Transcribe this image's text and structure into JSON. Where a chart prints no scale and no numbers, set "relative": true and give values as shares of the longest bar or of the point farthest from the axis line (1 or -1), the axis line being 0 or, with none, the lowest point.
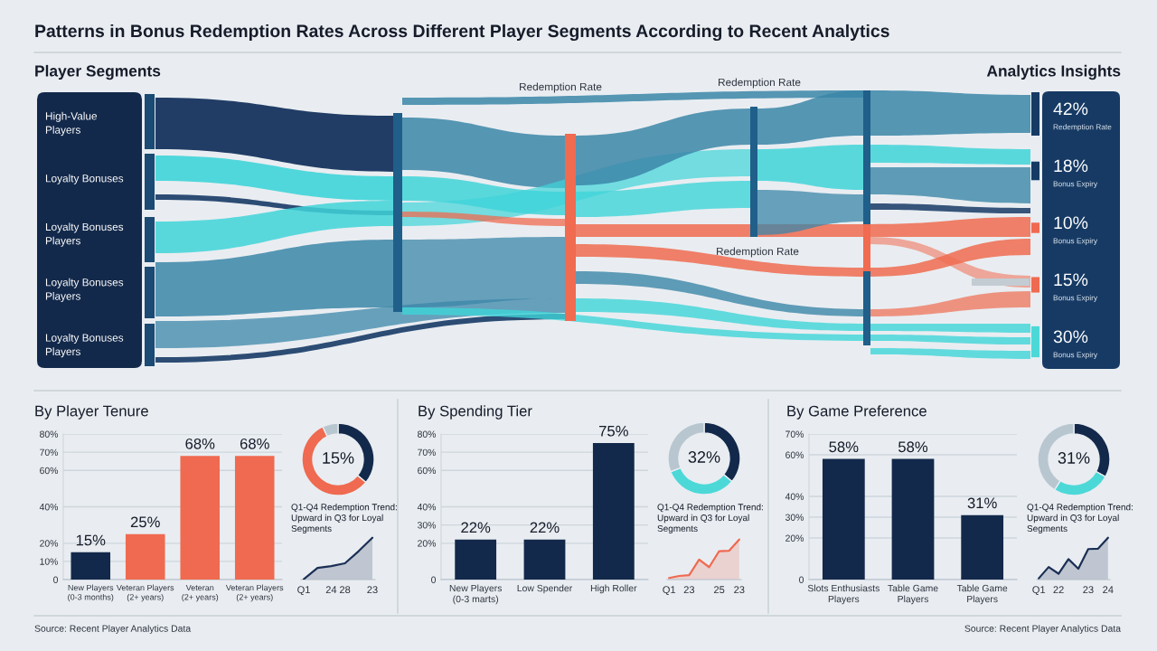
{
  "chart_data": [
    {
      "type": "other",
      "title": "Patterns in Bonus Redemption Rates Across Different Player Segments According to Recent Analytics",
      "subtitle": "Player Segments",
      "categories": [
        "High-Value\nPlayers",
        "Loyalty Bonuses",
        "Loyalty Bonuses\nPlayers",
        "Loyalty Bonuses\nPlayers",
        "Loyalty Bonuses\nPlayers"
      ],
      "annotations": [
        "Redemption Rate",
        "Redemption Rate",
        "Redemption Rate"
      ]
    },
    {
      "type": "other",
      "title": "Analytics Insights",
      "categories": [
        "Redemption Rate",
        "Bonus Expiry",
        "Bonus Expiry",
        "Bonus Expiry",
        "Bonus Expiry"
      ],
      "values": [
        42,
        18,
        10,
        15,
        30
      ],
      "value_labels": [
        "42%",
        "18%",
        "10%",
        "15%",
        "30%"
      ],
      "colors": [
        "#163a64",
        "#163a64",
        "#ef6a50",
        "#ef6a50",
        "#4dd8d8"
      ]
    },
    {
      "type": "bar",
      "title": "By Player Tenure",
      "categories": [
        "New Players\n(0-3 months)",
        "Veteran Players\n(2+ years)",
        "Veteran\n(2+ years)",
        "Veteran Players\n(2+ years)"
      ],
      "values": [
        15,
        25,
        68,
        68
      ],
      "value_labels": [
        "15%",
        "25%",
        "68%",
        "68%"
      ],
      "colors": [
        "#13294b",
        "#ef6a50",
        "#ef6a50",
        "#ef6a50"
      ],
      "ylim": [
        0,
        80
      ],
      "yticks": [
        0,
        {
          "value": 10,
          "label": "10%"
        },
        {
          "value": 20,
          "label": "20%"
        },
        {
          "value": 40,
          "label": "40%"
        },
        {
          "value": 60,
          "label": "60%"
        },
        {
          "value": 70,
          "label": "70%"
        },
        {
          "value": 80,
          "label": "80%"
        }
      ],
      "grid": "y",
      "annotations": [
        "Source: Recent Player Analytics Data"
      ]
    },
    {
      "type": "donut",
      "categories": [
        null,
        null,
        null
      ],
      "values": [
        36,
        57,
        7
      ],
      "colors": [
        "#13294b",
        "#ef6a50",
        "#b8c6d0"
      ],
      "annotations": [
        "15%"
      ]
    },
    {
      "type": "area",
      "title": "Q1-Q4 Redemption Trend:\nUpward in Q3 for Loyal\nSegments",
      "relative": true,
      "categories": [
        "Q1",
        null,
        "24",
        "28",
        null,
        "23"
      ],
      "series": [
        {
          "color": "#1b2f55",
          "values": [
            0.01,
            0.28,
            0.32,
            0.39,
            0.68,
            1
          ]
        }
      ]
    },
    {
      "type": "bar",
      "title": "By Spending Tier",
      "categories": [
        "New Players\n(0-3 marts)",
        "Low Spender",
        "High Roller"
      ],
      "values": [
        22,
        22,
        75
      ],
      "value_labels": [
        "22%",
        "22%",
        "75%"
      ],
      "colors": [
        "#13294b",
        "#13294b",
        "#13294b"
      ],
      "ylim": [
        0,
        80
      ],
      "yticks": [
        0,
        {
          "value": 20,
          "label": "20%"
        },
        {
          "value": 30,
          "label": "30%"
        },
        {
          "value": 40,
          "label": "40%"
        },
        {
          "value": 60,
          "label": "60%"
        },
        {
          "value": 70,
          "label": "70%"
        },
        {
          "value": 80,
          "label": "80%"
        }
      ],
      "grid": "y"
    },
    {
      "type": "donut",
      "categories": [
        null,
        null,
        null
      ],
      "values": [
        36,
        33,
        31
      ],
      "colors": [
        "#13294b",
        "#4dd8d8",
        "#b8c6d0"
      ],
      "annotations": [
        "32%"
      ]
    },
    {
      "type": "area",
      "title": "Q1-Q4 Redemption Trend:\nUpward in Q3 for Loyal\nSegments",
      "relative": true,
      "categories": [
        "Q1",
        null,
        "23",
        null,
        null,
        "25",
        null,
        "23"
      ],
      "series": [
        {
          "color": "#ef6a50",
          "values": [
            0.04,
            0.09,
            0.11,
            0.5,
            0.31,
            0.71,
            0.72,
            1
          ]
        }
      ]
    },
    {
      "type": "bar",
      "title": "By Game Preference",
      "categories": [
        "Slots Enthusiasts\nPlayers",
        "Table Game\nPlayers",
        "Table Game\nPlayers"
      ],
      "values": [
        58,
        58,
        31
      ],
      "value_labels": [
        "58%",
        "58%",
        "31%"
      ],
      "colors": [
        "#13294b",
        "#13294b",
        "#13294b"
      ],
      "ylim": [
        0,
        70
      ],
      "yticks": [
        0,
        {
          "value": 20,
          "label": "20%"
        },
        {
          "value": 30,
          "label": "30%"
        },
        {
          "value": 40,
          "label": "40%"
        },
        {
          "value": 60,
          "label": "60%"
        },
        {
          "value": 70,
          "label": "70%"
        }
      ],
      "grid": "y",
      "annotations": [
        "Source: Recent Player Analytics Data"
      ]
    },
    {
      "type": "donut",
      "categories": [
        null,
        null,
        null
      ],
      "values": [
        33,
        26,
        41
      ],
      "colors": [
        "#13294b",
        "#4dd8d8",
        "#b8c6d0"
      ],
      "annotations": [
        "31%"
      ]
    },
    {
      "type": "area",
      "title": "Q1-Q4 Redemption Trend:\nUpward in Q3 for Loyal\nSegments",
      "relative": true,
      "categories": [
        "Q1",
        null,
        "22",
        null,
        null,
        "23",
        null,
        "24"
      ],
      "series": [
        {
          "color": "#1b2f55",
          "values": [
            0.03,
            0.3,
            0.14,
            0.49,
            0.26,
            0.73,
            0.74,
            1
          ]
        }
      ]
    }
  ]
}
